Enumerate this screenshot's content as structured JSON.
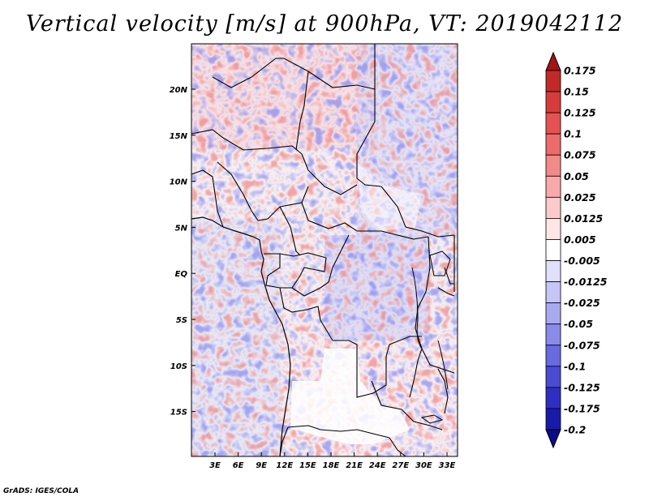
{
  "title": "Vertical velocity [m/s] at 900hPa, VT: 2019042112",
  "footer": "GrADS: IGES/COLA",
  "map": {
    "lon_labels": [
      "3E",
      "6E",
      "9E",
      "12E",
      "15E",
      "18E",
      "21E",
      "24E",
      "27E",
      "30E",
      "33E"
    ],
    "lat_labels": [
      "20N",
      "15N",
      "10N",
      "5N",
      "EQ",
      "5S",
      "10S",
      "15S"
    ]
  },
  "colorbar": {
    "labels": [
      "0.175",
      "0.15",
      "0.125",
      "0.1",
      "0.075",
      "0.05",
      "0.025",
      "0.0125",
      "0.005",
      "-0.005",
      "-0.0125",
      "-0.025",
      "-0.05",
      "-0.075",
      "-0.1",
      "-0.125",
      "-0.175",
      "-0.2"
    ],
    "colors": [
      "#a51414",
      "#c22a2a",
      "#d63c3c",
      "#e55252",
      "#ee6b6b",
      "#f38a8a",
      "#f8aaaa",
      "#fbcaca",
      "#fde6e6",
      "#ffffff",
      "#e0e0fb",
      "#c6c6f6",
      "#a9a9f0",
      "#8a8ae8",
      "#6a6adf",
      "#4b4bd2",
      "#2e2ec2",
      "#1a1aa8",
      "#0c0c8a"
    ]
  },
  "legend_colors": {
    "up": "#d94a4a",
    "down": "#5a5ae0",
    "border": "#000000"
  }
}
